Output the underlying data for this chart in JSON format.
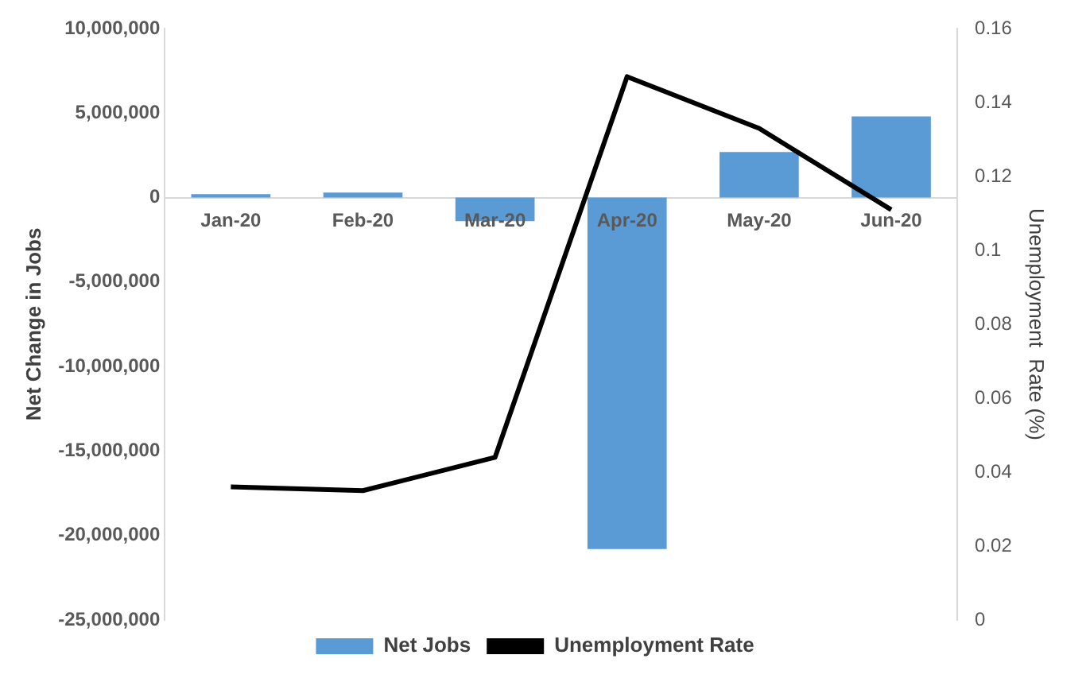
{
  "chart_data": {
    "type": "bar",
    "ylabel": "Net Change in Jobs",
    "y2label": "Unemployment  Rate (%)",
    "categories": [
      "Jan-20",
      "Feb-20",
      "Mar-20",
      "Apr-20",
      "May-20",
      "Jun-20"
    ],
    "series": [
      {
        "name": "Net Jobs",
        "color": "#5b9bd5",
        "values": [
          200000,
          300000,
          -1400000,
          -20800000,
          2700000,
          4800000
        ]
      },
      {
        "name": "Unemployment Rate",
        "type": "line",
        "axis": "y2",
        "color": "#000000",
        "values": [
          0.036,
          0.035,
          0.044,
          0.147,
          0.133,
          0.111
        ]
      }
    ],
    "ylim": [
      -25000000,
      10000000
    ],
    "yticks": [
      {
        "value": -25000000,
        "label": "-25,000,000"
      },
      {
        "value": -20000000,
        "label": "-20,000,000"
      },
      {
        "value": -15000000,
        "label": "-15,000,000"
      },
      {
        "value": -10000000,
        "label": "-10,000,000"
      },
      {
        "value": -5000000,
        "label": "-5,000,000"
      },
      0,
      {
        "value": 5000000,
        "label": "5,000,000"
      },
      {
        "value": 10000000,
        "label": "10,000,000"
      }
    ],
    "y2lim": [
      0,
      0.16
    ],
    "y2ticks": [
      0,
      0.02,
      0.04,
      0.06,
      0.08,
      0.1,
      0.12,
      0.14,
      0.16
    ],
    "grid": false,
    "legend": "bottom",
    "marker": "none",
    "line_style": "solid"
  }
}
